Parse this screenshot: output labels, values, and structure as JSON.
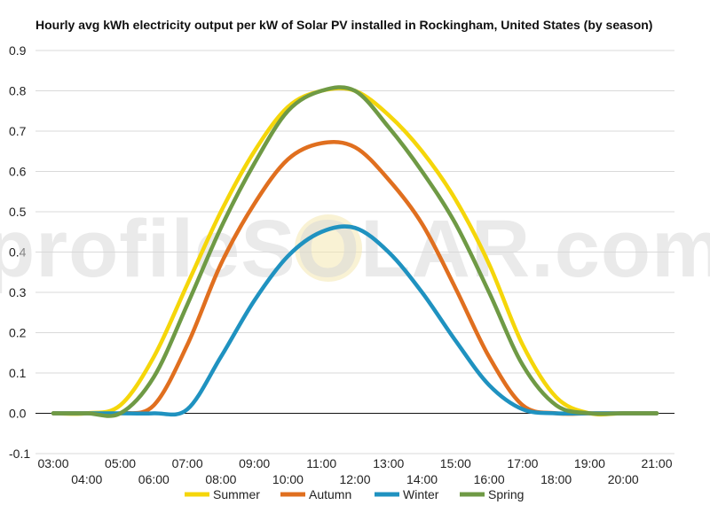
{
  "chart_data": {
    "type": "line",
    "title": "Hourly avg kWh electricity output per kW of Solar PV installed in Rockingham, United States (by season)",
    "xlabel": "",
    "ylabel": "",
    "x": [
      "03:00",
      "04:00",
      "05:00",
      "06:00",
      "07:00",
      "08:00",
      "09:00",
      "10:00",
      "11:00",
      "12:00",
      "13:00",
      "14:00",
      "15:00",
      "16:00",
      "17:00",
      "18:00",
      "19:00",
      "20:00",
      "21:00"
    ],
    "x_ticks": [
      "03:00",
      "04:00",
      "05:00",
      "06:00",
      "07:00",
      "08:00",
      "09:00",
      "10:00",
      "11:00",
      "12:00",
      "13:00",
      "14:00",
      "15:00",
      "16:00",
      "17:00",
      "18:00",
      "19:00",
      "20:00",
      "21:00"
    ],
    "ylim": [
      -0.1,
      0.9
    ],
    "y_ticks": [
      "-0.1",
      "0.0",
      "0.1",
      "0.2",
      "0.3",
      "0.4",
      "0.5",
      "0.6",
      "0.7",
      "0.8",
      "0.9"
    ],
    "grid": true,
    "legend_position": "bottom",
    "series": [
      {
        "name": "Summer",
        "color": "#f5d60a",
        "values": [
          0.0,
          0.0,
          0.02,
          0.14,
          0.32,
          0.5,
          0.65,
          0.76,
          0.8,
          0.8,
          0.74,
          0.65,
          0.53,
          0.37,
          0.17,
          0.04,
          0.0,
          0.0,
          0.0
        ]
      },
      {
        "name": "Autumn",
        "color": "#e06f1f",
        "values": [
          0.0,
          0.0,
          0.0,
          0.02,
          0.17,
          0.37,
          0.52,
          0.63,
          0.67,
          0.66,
          0.58,
          0.47,
          0.31,
          0.14,
          0.02,
          0.0,
          0.0,
          0.0,
          0.0
        ]
      },
      {
        "name": "Winter",
        "color": "#1f92c0",
        "values": [
          0.0,
          0.0,
          0.0,
          0.0,
          0.01,
          0.14,
          0.28,
          0.39,
          0.45,
          0.46,
          0.4,
          0.3,
          0.18,
          0.07,
          0.01,
          0.0,
          0.0,
          0.0,
          0.0
        ]
      },
      {
        "name": "Spring",
        "color": "#6f9a45",
        "values": [
          0.0,
          0.0,
          0.0,
          0.09,
          0.27,
          0.46,
          0.62,
          0.75,
          0.8,
          0.8,
          0.71,
          0.6,
          0.47,
          0.3,
          0.12,
          0.02,
          0.0,
          0.0,
          0.0
        ]
      }
    ],
    "watermark": "profileSOLAR.com"
  }
}
